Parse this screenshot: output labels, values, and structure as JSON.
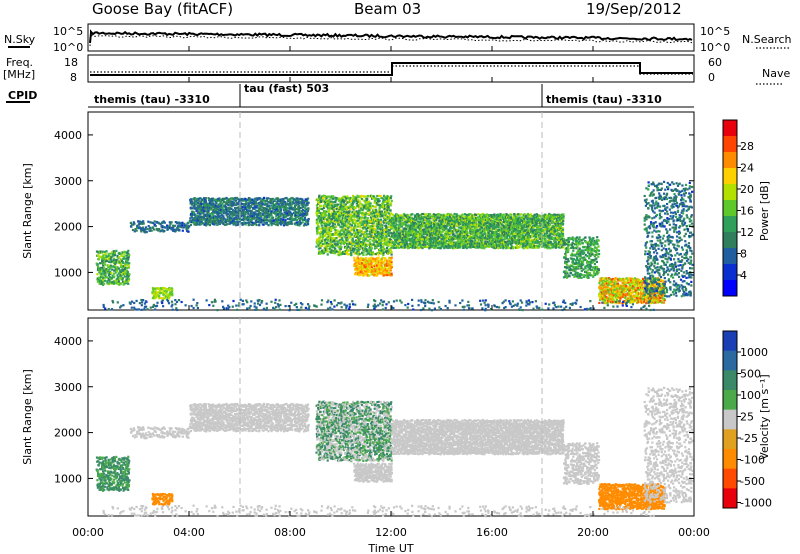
{
  "header": {
    "station": "Goose Bay (fitACF)",
    "beam": "Beam 03",
    "date": "19/Sep/2012"
  },
  "left_labels": {
    "nsky": "N.Sky",
    "freq_line1": "Freq.",
    "freq_line2": "[MHz]",
    "cpid": "CPID"
  },
  "right_labels": {
    "nsearch": "N.Search",
    "nave": "Nave"
  },
  "noise_panel": {
    "ticks": [
      "10^5",
      "10^0"
    ]
  },
  "freq_panel": {
    "left_ticks": [
      "18",
      "8"
    ],
    "right_ticks": [
      "60",
      "0"
    ]
  },
  "cpid_panel": {
    "segments": [
      {
        "label": "themis (tau) -3310",
        "start_hour": 0
      },
      {
        "label": "tau (fast) 503",
        "start_hour": 6
      },
      {
        "label": "themis (tau) -3310",
        "start_hour": 18
      }
    ]
  },
  "x_axis": {
    "label": "Time UT",
    "ticks": [
      "00:00",
      "04:00",
      "08:00",
      "12:00",
      "16:00",
      "20:00",
      "00:00"
    ]
  },
  "chart_data": [
    {
      "type": "heatmap",
      "name": "power",
      "ylabel": "Slant Range [km]",
      "xlim_hours": [
        0,
        24
      ],
      "ylim_km": [
        180,
        4500
      ],
      "yticks": [
        "1000",
        "2000",
        "3000",
        "4000"
      ],
      "colorbar": {
        "label": "Power [dB]",
        "ticks": [
          "28",
          "24",
          "20",
          "16",
          "12",
          "8",
          "4"
        ],
        "colors": [
          "#e8000b",
          "#ff4500",
          "#ff8c00",
          "#ffd000",
          "#b4e000",
          "#5cc82c",
          "#2ea05a",
          "#2f7f5f",
          "#1f5fa0",
          "#0a2fd0",
          "#0000ff"
        ]
      }
    },
    {
      "type": "heatmap",
      "name": "velocity",
      "ylabel": "Slant Range [km]",
      "xlim_hours": [
        0,
        24
      ],
      "ylim_km": [
        180,
        4500
      ],
      "yticks": [
        "1000",
        "2000",
        "3000",
        "4000"
      ],
      "colorbar": {
        "label": "Velocity [m s⁻¹]",
        "ticks": [
          "1000",
          "500",
          "100",
          "25",
          "-25",
          "-100",
          "-500",
          "-1000"
        ],
        "colors": [
          "#1a3fb4",
          "#2a6aa0",
          "#3a8a6a",
          "#4aaa4a",
          "#c8c8c8",
          "#e0a020",
          "#ff8c00",
          "#ff4a00",
          "#e8000b"
        ]
      }
    }
  ]
}
